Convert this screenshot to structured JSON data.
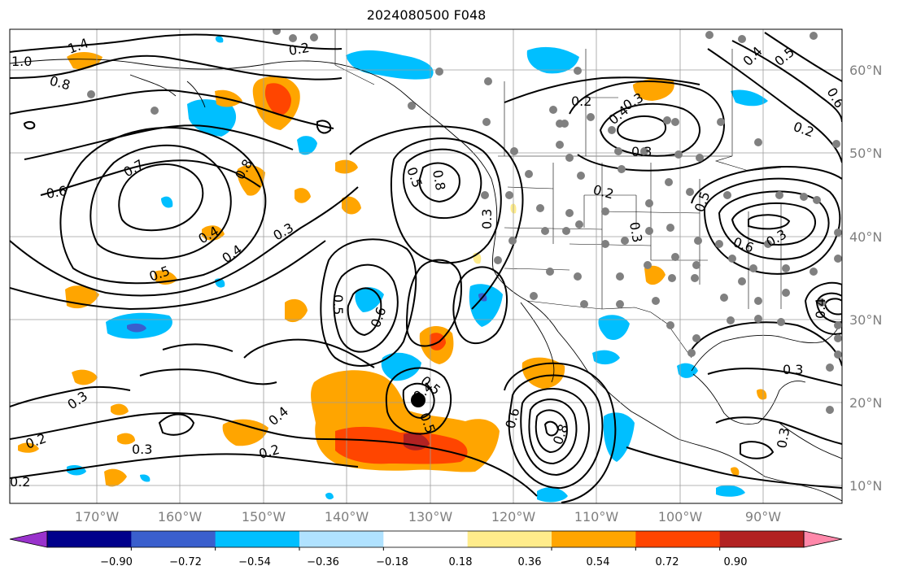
{
  "title": "2024080500 F048",
  "lon_labels": [
    "170°W",
    "160°W",
    "150°W",
    "140°W",
    "130°W",
    "120°W",
    "110°W",
    "100°W",
    "90°W"
  ],
  "lat_labels": [
    "60°N",
    "50°N",
    "40°N",
    "30°N",
    "20°N",
    "10°N"
  ],
  "contour_labels": [
    "1.0",
    "1.4",
    "0.8",
    "0.6",
    "0.7",
    "0.5",
    "0.4",
    "0.3",
    "0.2",
    "0.2",
    "0.3",
    "0.4",
    "0.5",
    "0.6",
    "0.8",
    "0.5",
    "0.8",
    "0.3",
    "0.2",
    "0.2",
    "0.3",
    "0.4",
    "0.5",
    "0.6",
    "0.3",
    "0.4",
    "0.5",
    "0.6",
    "0.8",
    "0.3",
    "0.2",
    "0.3",
    "0.2",
    "0.3",
    "0.4",
    "0.2",
    "0.5",
    "0.6",
    "0.3",
    "0.4",
    "0.3",
    "0.4",
    "0.5"
  ],
  "colorbar": {
    "ticks": [
      "−0.90",
      "−0.72",
      "−0.54",
      "−0.36",
      "−0.18",
      "0.18",
      "0.36",
      "0.54",
      "0.72",
      "0.90"
    ],
    "colors": [
      "#9932cc",
      "#00008b",
      "#3a5fcd",
      "#00bfff",
      "#b0e2ff",
      "#ffffff",
      "#ffec8b",
      "#ffa500",
      "#ff4500",
      "#b22222",
      "#ff88aa"
    ]
  },
  "fill_colors": {
    "neg_light": "#b0e2ff",
    "neg": "#00bfff",
    "neg_dark": "#3a5fcd",
    "pos_light": "#ffec8b",
    "pos": "#ffa500",
    "pos_dark": "#ff4500",
    "pos_darker": "#b22222"
  },
  "marker_color": "#808080",
  "center_marker": "storm-center"
}
